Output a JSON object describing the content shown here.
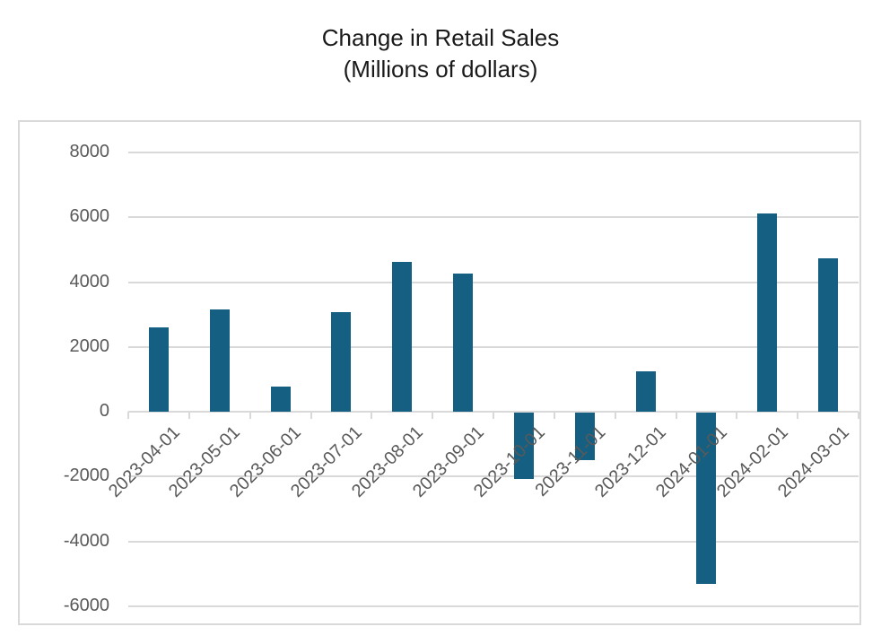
{
  "title": {
    "line1": "Change in Retail Sales",
    "line2": "(Millions of dollars)"
  },
  "colors": {
    "bar": "#156082",
    "gridline": "#D9D9D9",
    "axis_label": "#595959",
    "border": "#D9D9D9",
    "background": "#FFFFFF",
    "title_text": "#1A1A1A"
  },
  "chart_data": {
    "type": "bar",
    "title": "Change in Retail Sales (Millions of dollars)",
    "xlabel": "",
    "ylabel": "",
    "categories": [
      "2023-04-01",
      "2023-05-01",
      "2023-06-01",
      "2023-07-01",
      "2023-08-01",
      "2023-09-01",
      "2023-10-01",
      "2023-11-01",
      "2023-12-01",
      "2024-01-01",
      "2024-02-01",
      "2024-03-01"
    ],
    "values": [
      2600,
      3170,
      780,
      3080,
      4620,
      4270,
      -2040,
      -1460,
      1250,
      -5270,
      6120,
      4730
    ],
    "ylim": [
      -6000,
      8000
    ],
    "yticks": [
      8000,
      6000,
      4000,
      2000,
      0,
      -2000,
      -4000,
      -6000
    ],
    "ytick_step": 2000,
    "grid": "horizontal",
    "legend": "none",
    "x_label_rotation_deg": 45
  }
}
